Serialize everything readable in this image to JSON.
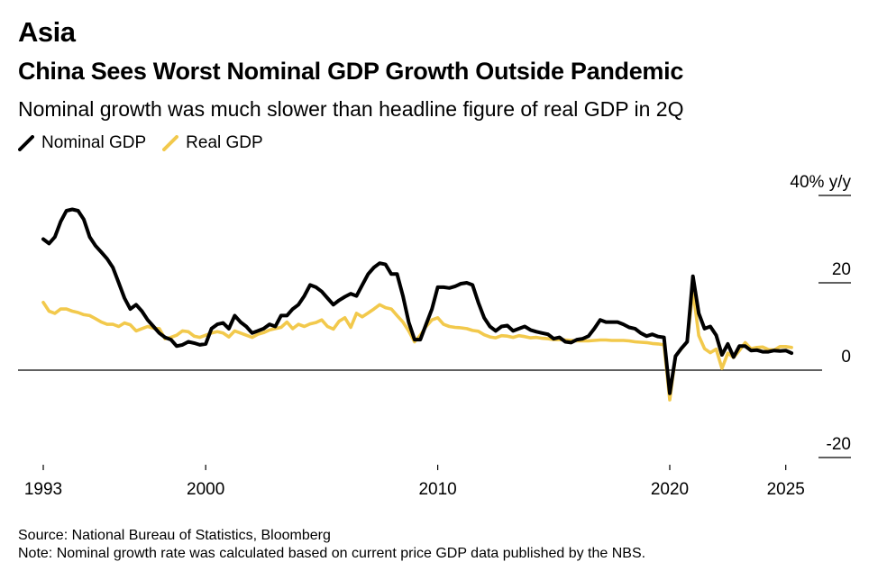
{
  "header": {
    "kicker": "Asia",
    "title": "China Sees Worst Nominal GDP Growth Outside Pandemic",
    "subtitle": "Nominal growth was much slower than headline figure of real GDP in 2Q"
  },
  "colors": {
    "nominal": "#000000",
    "real": "#f2c94c",
    "axis": "#000000"
  },
  "footer": {
    "source": "Source: National Bureau of Statistics, Bloomberg",
    "note": "Note: Nominal growth rate was calculated based on current price GDP data published by the NBS."
  },
  "chart_data": {
    "type": "line",
    "ylim": [
      -20,
      40
    ],
    "xlim": [
      1993,
      2025.4
    ],
    "y_ticks": [
      {
        "value": 40,
        "label": "40% y/y"
      },
      {
        "value": 20,
        "label": "20"
      },
      {
        "value": 0,
        "label": "0"
      },
      {
        "value": -20,
        "label": "-20"
      }
    ],
    "x_ticks": [
      {
        "value": 1993,
        "label": "1993"
      },
      {
        "value": 2000,
        "label": "2000"
      },
      {
        "value": 2010,
        "label": "2010"
      },
      {
        "value": 2020,
        "label": "2020"
      },
      {
        "value": 2025,
        "label": "2025"
      }
    ],
    "series": [
      {
        "name": "Nominal GDP",
        "color": "#000000",
        "points": [
          [
            1993.0,
            30
          ],
          [
            1993.25,
            29
          ],
          [
            1993.5,
            30.5
          ],
          [
            1993.75,
            34
          ],
          [
            1994.0,
            36.5
          ],
          [
            1994.25,
            36.8
          ],
          [
            1994.5,
            36.5
          ],
          [
            1994.75,
            34.5
          ],
          [
            1995.0,
            30.5
          ],
          [
            1995.25,
            28.5
          ],
          [
            1995.5,
            27
          ],
          [
            1995.75,
            25.5
          ],
          [
            1996.0,
            23.5
          ],
          [
            1996.25,
            20
          ],
          [
            1996.5,
            16.5
          ],
          [
            1996.75,
            14
          ],
          [
            1997.0,
            15
          ],
          [
            1997.25,
            13.5
          ],
          [
            1997.5,
            11.5
          ],
          [
            1997.75,
            10
          ],
          [
            1998.0,
            8.5
          ],
          [
            1998.25,
            7.5
          ],
          [
            1998.5,
            7
          ],
          [
            1998.75,
            5.5
          ],
          [
            1999.0,
            5.8
          ],
          [
            1999.25,
            6.5
          ],
          [
            1999.5,
            6.2
          ],
          [
            1999.75,
            5.8
          ],
          [
            2000.0,
            6
          ],
          [
            2000.25,
            9.5
          ],
          [
            2000.5,
            10.5
          ],
          [
            2000.75,
            10.8
          ],
          [
            2001.0,
            9.5
          ],
          [
            2001.25,
            12.5
          ],
          [
            2001.5,
            11
          ],
          [
            2001.75,
            10
          ],
          [
            2002.0,
            8.5
          ],
          [
            2002.25,
            9
          ],
          [
            2002.5,
            9.5
          ],
          [
            2002.75,
            10.5
          ],
          [
            2003.0,
            10
          ],
          [
            2003.25,
            12.5
          ],
          [
            2003.5,
            12.5
          ],
          [
            2003.75,
            14
          ],
          [
            2004.0,
            15
          ],
          [
            2004.25,
            17
          ],
          [
            2004.5,
            19.5
          ],
          [
            2004.75,
            19
          ],
          [
            2005.0,
            18
          ],
          [
            2005.25,
            16.5
          ],
          [
            2005.5,
            15
          ],
          [
            2005.75,
            16
          ],
          [
            2006.0,
            16.8
          ],
          [
            2006.25,
            17.5
          ],
          [
            2006.5,
            17
          ],
          [
            2006.75,
            19.5
          ],
          [
            2007.0,
            22
          ],
          [
            2007.25,
            23.5
          ],
          [
            2007.5,
            24.5
          ],
          [
            2007.75,
            24.2
          ],
          [
            2008.0,
            22
          ],
          [
            2008.25,
            22
          ],
          [
            2008.5,
            17
          ],
          [
            2008.75,
            11
          ],
          [
            2009.0,
            7
          ],
          [
            2009.25,
            7
          ],
          [
            2009.5,
            10.5
          ],
          [
            2009.75,
            14
          ],
          [
            2010.0,
            19
          ],
          [
            2010.25,
            19
          ],
          [
            2010.5,
            18.8
          ],
          [
            2010.75,
            19.2
          ],
          [
            2011.0,
            19.8
          ],
          [
            2011.25,
            20
          ],
          [
            2011.5,
            19.5
          ],
          [
            2011.75,
            15.5
          ],
          [
            2012.0,
            12
          ],
          [
            2012.25,
            10
          ],
          [
            2012.5,
            9
          ],
          [
            2012.75,
            10
          ],
          [
            2013.0,
            10.2
          ],
          [
            2013.25,
            9
          ],
          [
            2013.5,
            9.5
          ],
          [
            2013.75,
            10
          ],
          [
            2014.0,
            9.2
          ],
          [
            2014.25,
            8.8
          ],
          [
            2014.5,
            8.5
          ],
          [
            2014.75,
            8.2
          ],
          [
            2015.0,
            7.2
          ],
          [
            2015.25,
            7.5
          ],
          [
            2015.5,
            6.5
          ],
          [
            2015.75,
            6.3
          ],
          [
            2016.0,
            7
          ],
          [
            2016.25,
            7.2
          ],
          [
            2016.5,
            7.8
          ],
          [
            2016.75,
            9.5
          ],
          [
            2017.0,
            11.5
          ],
          [
            2017.25,
            11
          ],
          [
            2017.5,
            11
          ],
          [
            2017.75,
            11
          ],
          [
            2018.0,
            10.5
          ],
          [
            2018.25,
            9.8
          ],
          [
            2018.5,
            9.5
          ],
          [
            2018.75,
            8.5
          ],
          [
            2019.0,
            7.8
          ],
          [
            2019.25,
            8.2
          ],
          [
            2019.5,
            7.7
          ],
          [
            2019.75,
            7.5
          ],
          [
            2020.0,
            -5.3
          ],
          [
            2020.25,
            3.2
          ],
          [
            2020.5,
            5
          ],
          [
            2020.75,
            6.5
          ],
          [
            2021.0,
            21.5
          ],
          [
            2021.25,
            13
          ],
          [
            2021.5,
            9.5
          ],
          [
            2021.75,
            10
          ],
          [
            2022.0,
            8
          ],
          [
            2022.25,
            3.5
          ],
          [
            2022.5,
            6
          ],
          [
            2022.75,
            3
          ],
          [
            2023.0,
            5.5
          ],
          [
            2023.25,
            5.5
          ],
          [
            2023.5,
            4.5
          ],
          [
            2023.75,
            4.6
          ],
          [
            2024.0,
            4.2
          ],
          [
            2024.25,
            4.2
          ],
          [
            2024.5,
            4.5
          ],
          [
            2024.75,
            4.4
          ],
          [
            2025.0,
            4.5
          ],
          [
            2025.25,
            3.9
          ]
        ]
      },
      {
        "name": "Real GDP",
        "color": "#f2c94c",
        "points": [
          [
            1993.0,
            15.5
          ],
          [
            1993.25,
            13.5
          ],
          [
            1993.5,
            13
          ],
          [
            1993.75,
            14
          ],
          [
            1994.0,
            14
          ],
          [
            1994.25,
            13.5
          ],
          [
            1994.5,
            13.2
          ],
          [
            1994.75,
            12.7
          ],
          [
            1995.0,
            12.5
          ],
          [
            1995.25,
            11.8
          ],
          [
            1995.5,
            11
          ],
          [
            1995.75,
            10.5
          ],
          [
            1996.0,
            10.5
          ],
          [
            1996.25,
            10
          ],
          [
            1996.5,
            10.8
          ],
          [
            1996.75,
            10.4
          ],
          [
            1997.0,
            9
          ],
          [
            1997.25,
            9.5
          ],
          [
            1997.5,
            10
          ],
          [
            1997.75,
            9.6
          ],
          [
            1998.0,
            9.5
          ],
          [
            1998.25,
            7.2
          ],
          [
            1998.5,
            7.5
          ],
          [
            1998.75,
            8
          ],
          [
            1999.0,
            9
          ],
          [
            1999.25,
            8.8
          ],
          [
            1999.5,
            7.8
          ],
          [
            1999.75,
            7.5
          ],
          [
            2000.0,
            8
          ],
          [
            2000.25,
            8.5
          ],
          [
            2000.5,
            8.8
          ],
          [
            2000.75,
            8.5
          ],
          [
            2001.0,
            7.6
          ],
          [
            2001.25,
            9
          ],
          [
            2001.5,
            8.5
          ],
          [
            2001.75,
            8
          ],
          [
            2002.0,
            7.5
          ],
          [
            2002.25,
            8.2
          ],
          [
            2002.5,
            8.6
          ],
          [
            2002.75,
            9.2
          ],
          [
            2003.0,
            9.5
          ],
          [
            2003.25,
            9.8
          ],
          [
            2003.5,
            11
          ],
          [
            2003.75,
            9.5
          ],
          [
            2004.0,
            10.5
          ],
          [
            2004.25,
            10
          ],
          [
            2004.5,
            10.6
          ],
          [
            2004.75,
            10.9
          ],
          [
            2005.0,
            11.5
          ],
          [
            2005.25,
            10
          ],
          [
            2005.5,
            9.4
          ],
          [
            2005.75,
            11.2
          ],
          [
            2006.0,
            12
          ],
          [
            2006.25,
            9.8
          ],
          [
            2006.5,
            13
          ],
          [
            2006.75,
            12.2
          ],
          [
            2007.0,
            13.1
          ],
          [
            2007.25,
            14
          ],
          [
            2007.5,
            15
          ],
          [
            2007.75,
            14.3
          ],
          [
            2008.0,
            14
          ],
          [
            2008.25,
            12.5
          ],
          [
            2008.5,
            11
          ],
          [
            2008.75,
            9
          ],
          [
            2009.0,
            6.5
          ],
          [
            2009.25,
            8
          ],
          [
            2009.5,
            10
          ],
          [
            2009.75,
            11.5
          ],
          [
            2010.0,
            12
          ],
          [
            2010.25,
            10.5
          ],
          [
            2010.5,
            10
          ],
          [
            2010.75,
            9.8
          ],
          [
            2011.0,
            9.7
          ],
          [
            2011.25,
            9.5
          ],
          [
            2011.5,
            9.1
          ],
          [
            2011.75,
            8.9
          ],
          [
            2012.0,
            8.1
          ],
          [
            2012.25,
            7.6
          ],
          [
            2012.5,
            7.4
          ],
          [
            2012.75,
            7.9
          ],
          [
            2013.0,
            7.8
          ],
          [
            2013.25,
            7.5
          ],
          [
            2013.5,
            7.9
          ],
          [
            2013.75,
            7.7
          ],
          [
            2014.0,
            7.4
          ],
          [
            2014.25,
            7.5
          ],
          [
            2014.5,
            7.3
          ],
          [
            2014.75,
            7.2
          ],
          [
            2015.0,
            7
          ],
          [
            2015.25,
            7
          ],
          [
            2015.5,
            6.9
          ],
          [
            2015.75,
            6.8
          ],
          [
            2016.0,
            6.7
          ],
          [
            2016.25,
            6.7
          ],
          [
            2016.5,
            6.7
          ],
          [
            2016.75,
            6.8
          ],
          [
            2017.0,
            6.9
          ],
          [
            2017.25,
            6.9
          ],
          [
            2017.5,
            6.8
          ],
          [
            2017.75,
            6.8
          ],
          [
            2018.0,
            6.8
          ],
          [
            2018.25,
            6.7
          ],
          [
            2018.5,
            6.5
          ],
          [
            2018.75,
            6.4
          ],
          [
            2019.0,
            6.3
          ],
          [
            2019.25,
            6.1
          ],
          [
            2019.5,
            6
          ],
          [
            2019.75,
            5.8
          ],
          [
            2020.0,
            -6.8
          ],
          [
            2020.25,
            3.2
          ],
          [
            2020.5,
            4.9
          ],
          [
            2020.75,
            6.5
          ],
          [
            2021.0,
            18.3
          ],
          [
            2021.25,
            7.9
          ],
          [
            2021.5,
            4.9
          ],
          [
            2021.75,
            4
          ],
          [
            2022.0,
            4.8
          ],
          [
            2022.25,
            0.4
          ],
          [
            2022.5,
            3.9
          ],
          [
            2022.75,
            2.9
          ],
          [
            2023.0,
            4.5
          ],
          [
            2023.25,
            6.3
          ],
          [
            2023.5,
            4.9
          ],
          [
            2023.75,
            5.2
          ],
          [
            2024.0,
            5.3
          ],
          [
            2024.25,
            4.7
          ],
          [
            2024.5,
            4.6
          ],
          [
            2024.75,
            5.4
          ],
          [
            2025.0,
            5.4
          ],
          [
            2025.25,
            5.2
          ]
        ]
      }
    ]
  }
}
